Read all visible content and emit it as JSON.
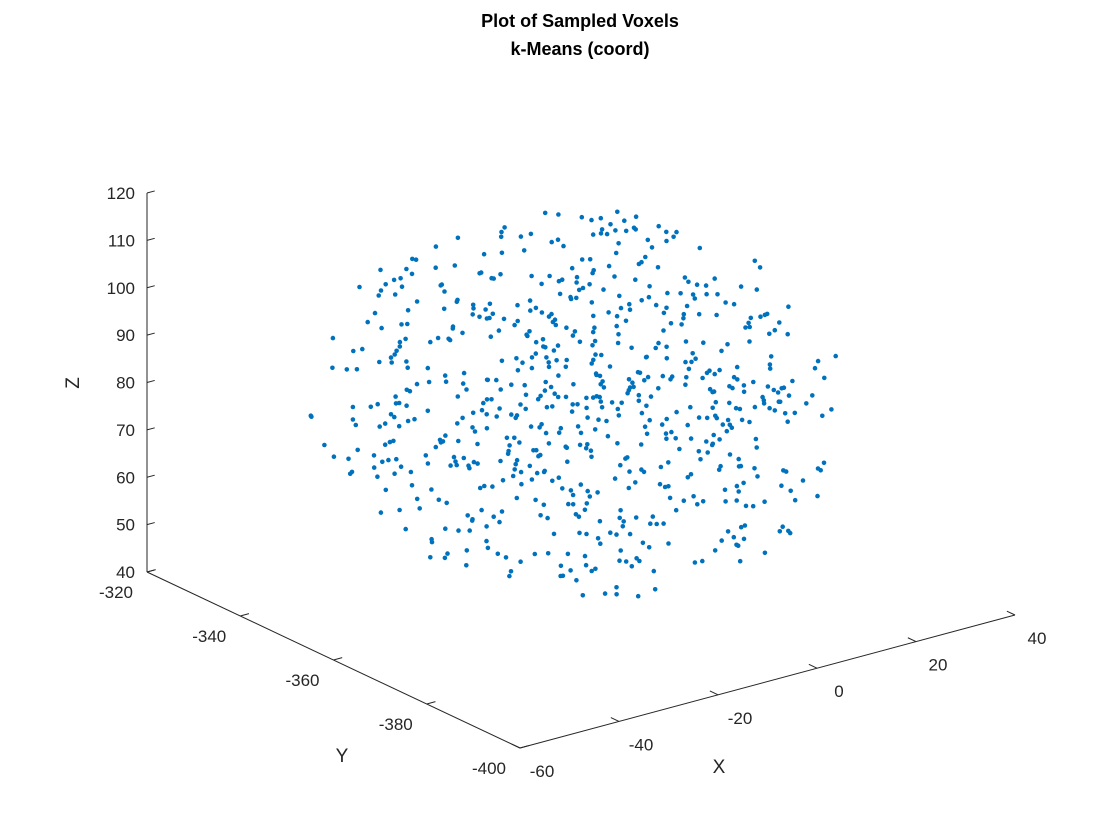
{
  "chart_data": {
    "type": "scatter",
    "projection": "3d",
    "title": "Plot of Sampled Voxels",
    "subtitle": "k-Means (coord)",
    "xlabel": "X",
    "ylabel": "Y",
    "zlabel": "Z",
    "xlim": [
      -60,
      40
    ],
    "ylim": [
      -400,
      -320
    ],
    "zlim": [
      40,
      120
    ],
    "x_ticks": [
      "-60",
      "-40",
      "-20",
      "0",
      "20",
      "40"
    ],
    "y_ticks": [
      "-400",
      "-380",
      "-360",
      "-340",
      "-320"
    ],
    "z_ticks": [
      "40",
      "50",
      "60",
      "70",
      "80",
      "90",
      "100",
      "110",
      "120"
    ],
    "grid": false,
    "marker_color": "#0072BD",
    "points_description": "approximately 700 sampled voxel coordinates forming an ellipsoidal cloud",
    "points_xyz": []
  }
}
